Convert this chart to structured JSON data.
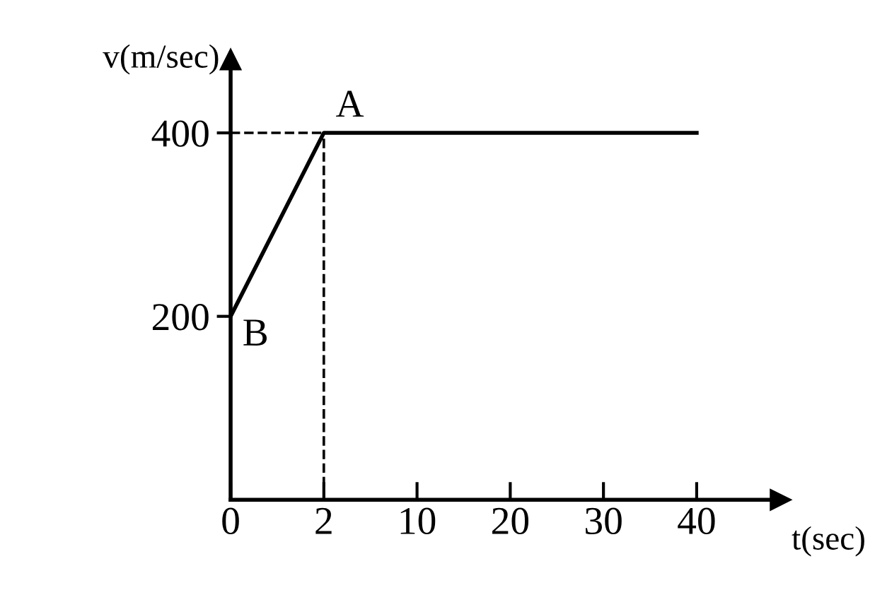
{
  "chart_data": {
    "type": "line",
    "xlabel": "t(sec)",
    "ylabel": "v(m/sec)",
    "categories": [
      "0",
      "2",
      "10",
      "20",
      "30",
      "40"
    ],
    "series": [
      {
        "color": "#000000",
        "values": [
          200,
          400,
          400,
          400,
          400,
          400
        ]
      }
    ],
    "ylim": [
      0,
      480
    ],
    "yticks": [
      200,
      400
    ],
    "ref_lines": [
      {
        "axis": "y",
        "value": 400,
        "line_style": "dashed",
        "color": "#000000"
      },
      {
        "axis": "x",
        "value": "2",
        "line_style": "dashed",
        "color": "#000000"
      }
    ],
    "annotations": [
      {
        "text": "A",
        "x": "2",
        "y": 400
      },
      {
        "text": "B",
        "x": "0",
        "y": 200
      }
    ],
    "grid": false,
    "legend": false,
    "marker": "none",
    "line_style": "solid"
  }
}
